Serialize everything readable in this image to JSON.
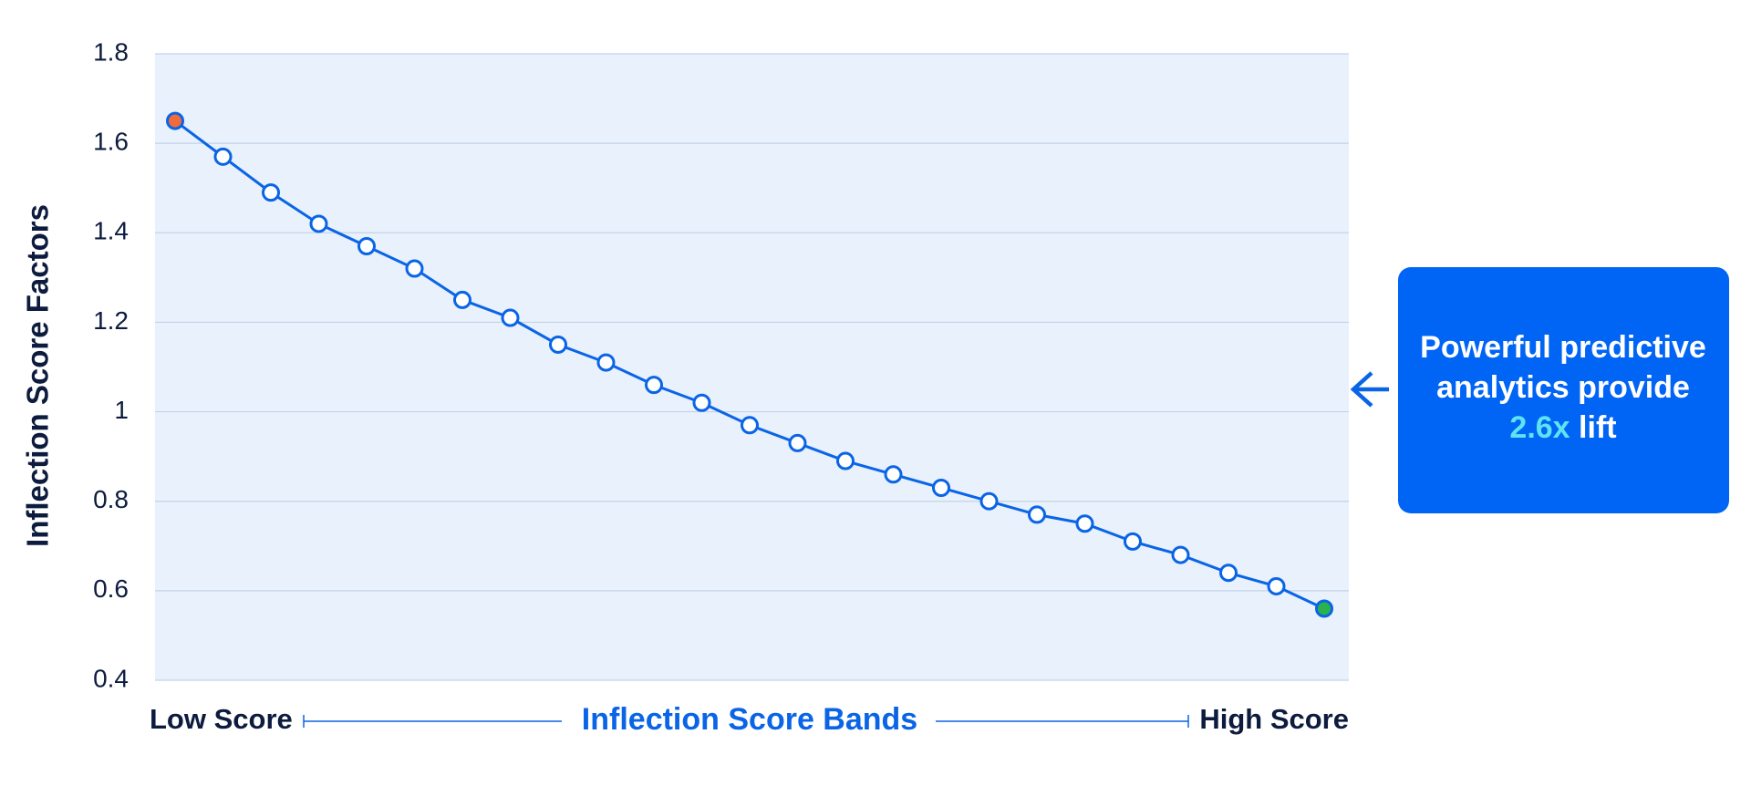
{
  "chart_data": {
    "type": "line",
    "ylabel": "Inflection Score Factors",
    "xlabel": "Inflection Score Bands",
    "x_start_label": "Low Score",
    "x_end_label": "High Score",
    "categories": [
      null,
      null,
      null,
      null,
      null,
      null,
      null,
      null,
      null,
      null,
      null,
      null,
      null,
      null,
      null,
      null,
      null,
      null,
      null,
      null,
      null,
      null,
      null,
      null,
      null
    ],
    "series": [
      {
        "color": "#0a64e6",
        "first_marker_color": "#f26b3a",
        "last_marker_color": "#2bb24c",
        "values": [
          1.65,
          1.57,
          1.49,
          1.42,
          1.37,
          1.32,
          1.25,
          1.21,
          1.15,
          1.11,
          1.06,
          1.02,
          0.97,
          0.93,
          0.89,
          0.86,
          0.83,
          0.8,
          0.77,
          0.75,
          0.71,
          0.68,
          0.64,
          0.61,
          0.56
        ]
      }
    ],
    "ylim": [
      0.4,
      1.8
    ],
    "yticks": [
      0.4,
      0.6,
      0.8,
      1,
      1.2,
      1.4,
      1.6,
      1.8
    ],
    "grid": true,
    "callout": {
      "lines": [
        "Powerful predictive",
        "analytics provide"
      ],
      "highlight": "2.6x",
      "tail": "lift"
    }
  }
}
